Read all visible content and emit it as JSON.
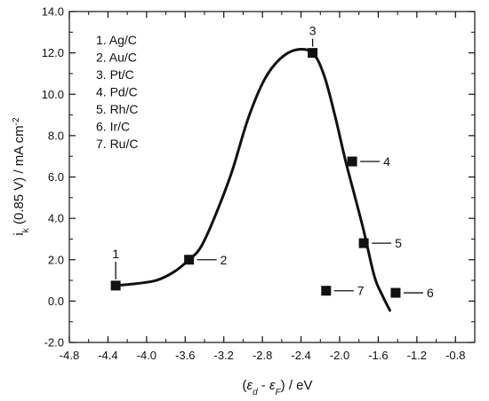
{
  "chart_data": {
    "type": "scatter",
    "xlabel_parts": [
      "(",
      "ε",
      "d",
      " - ",
      "ε",
      "F",
      ") / eV"
    ],
    "ylabel_parts": [
      "i",
      "k",
      " (0.85 V) / mA cm",
      "-2"
    ],
    "xlim": [
      -4.8,
      -0.6
    ],
    "ylim": [
      -2.0,
      14.0
    ],
    "xticks": [
      "-4.8",
      "-4.4",
      "-4.0",
      "-3.6",
      "-3.2",
      "-2.8",
      "-2.4",
      "-2.0",
      "-1.6",
      "-1.2",
      "-0.8"
    ],
    "xtick_values": [
      -4.8,
      -4.4,
      -4.0,
      -3.6,
      -3.2,
      -2.8,
      -2.4,
      -2.0,
      -1.6,
      -1.2,
      -0.8
    ],
    "yticks": [
      "-2.0",
      "0.0",
      "2.0",
      "4.0",
      "6.0",
      "8.0",
      "10.0",
      "12.0",
      "14.0"
    ],
    "ytick_values": [
      -2.0,
      0.0,
      2.0,
      4.0,
      6.0,
      8.0,
      10.0,
      12.0,
      14.0
    ],
    "legend": [
      "1. Ag/C",
      "2. Au/C",
      "3. Pt/C",
      "4. Pd/C",
      "5. Rh/C",
      "6. Ir/C",
      "7. Ru/C"
    ],
    "legend_position": "top-left",
    "grid": false,
    "points": [
      {
        "label": "1",
        "x": -4.32,
        "y": 0.75
      },
      {
        "label": "2",
        "x": -3.56,
        "y": 2.0
      },
      {
        "label": "3",
        "x": -2.28,
        "y": 12.0
      },
      {
        "label": "4",
        "x": -1.87,
        "y": 6.75
      },
      {
        "label": "5",
        "x": -1.75,
        "y": 2.8
      },
      {
        "label": "6",
        "x": -1.42,
        "y": 0.4
      },
      {
        "label": "7",
        "x": -2.14,
        "y": 0.5
      }
    ],
    "curve": [
      {
        "x": -4.32,
        "y": 0.75
      },
      {
        "x": -4.1,
        "y": 0.85
      },
      {
        "x": -3.9,
        "y": 1.0
      },
      {
        "x": -3.72,
        "y": 1.4
      },
      {
        "x": -3.56,
        "y": 2.0
      },
      {
        "x": -3.44,
        "y": 2.6
      },
      {
        "x": -3.3,
        "y": 4.0
      },
      {
        "x": -3.12,
        "y": 6.2
      },
      {
        "x": -2.95,
        "y": 8.8
      },
      {
        "x": -2.78,
        "y": 10.7
      },
      {
        "x": -2.62,
        "y": 11.7
      },
      {
        "x": -2.45,
        "y": 12.15
      },
      {
        "x": -2.28,
        "y": 12.0
      },
      {
        "x": -2.16,
        "y": 10.9
      },
      {
        "x": -2.04,
        "y": 8.8
      },
      {
        "x": -1.94,
        "y": 6.8
      },
      {
        "x": -1.85,
        "y": 5.2
      },
      {
        "x": -1.75,
        "y": 3.4
      },
      {
        "x": -1.64,
        "y": 1.2
      },
      {
        "x": -1.56,
        "y": 0.3
      },
      {
        "x": -1.48,
        "y": -0.45
      }
    ]
  }
}
